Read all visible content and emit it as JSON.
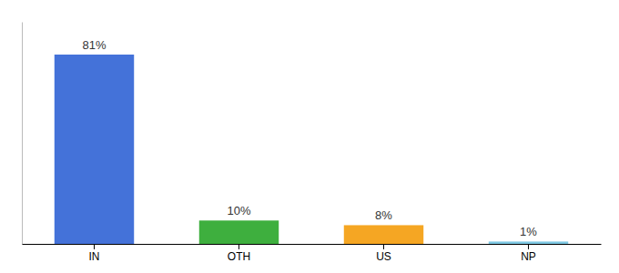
{
  "chart_data": {
    "type": "bar",
    "categories": [
      "IN",
      "OTH",
      "US",
      "NP"
    ],
    "values": [
      81,
      10,
      8,
      1
    ],
    "value_labels": [
      "81%",
      "10%",
      "8%",
      "1%"
    ],
    "colors": [
      "#4472d9",
      "#3eaf3e",
      "#f5a623",
      "#7ec8e3"
    ],
    "ylim": [
      0,
      95
    ],
    "data_labels": true,
    "tick_labels": "x"
  }
}
